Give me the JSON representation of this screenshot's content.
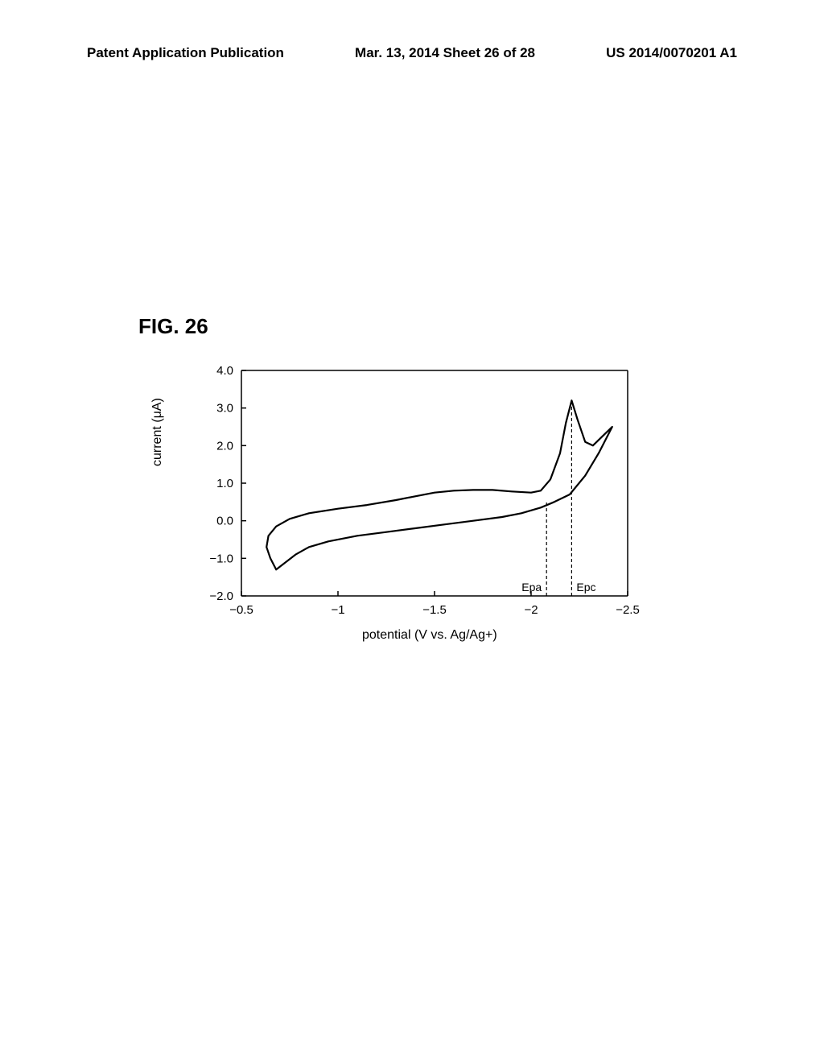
{
  "header": {
    "left": "Patent Application Publication",
    "center": "Mar. 13, 2014  Sheet 26 of 28",
    "right": "US 2014/0070201 A1"
  },
  "figure": {
    "label": "FIG. 26",
    "type": "line",
    "chart": {
      "xlabel": "potential  (V vs. Ag/Ag+)",
      "ylabel": "current  (μA)",
      "xlim": [
        -0.5,
        -2.5
      ],
      "ylim": [
        -2.0,
        4.0
      ],
      "xticks": [
        -0.5,
        -1,
        -1.5,
        -2,
        -2.5
      ],
      "xtick_labels": [
        "−0.5",
        "−1",
        "−1.5",
        "−2",
        "−2.5"
      ],
      "yticks": [
        -2.0,
        -1.0,
        0.0,
        1.0,
        2.0,
        3.0,
        4.0
      ],
      "ytick_labels": [
        "−2.0",
        "−1.0",
        "0.0",
        "1.0",
        "2.0",
        "3.0",
        "4.0"
      ],
      "background_color": "#ffffff",
      "axis_color": "#000000",
      "line_color": "#000000",
      "line_width": 2.2,
      "markers": {
        "Epa": {
          "x": -2.08,
          "label": "Epa"
        },
        "Epc": {
          "x": -2.21,
          "label": "Epc"
        }
      },
      "marker_line_style": "dashed",
      "marker_line_color": "#000000",
      "curve_points_forward": [
        [
          -0.68,
          -1.3
        ],
        [
          -0.65,
          -1.0
        ],
        [
          -0.63,
          -0.7
        ],
        [
          -0.64,
          -0.4
        ],
        [
          -0.68,
          -0.15
        ],
        [
          -0.75,
          0.05
        ],
        [
          -0.85,
          0.2
        ],
        [
          -1.0,
          0.32
        ],
        [
          -1.15,
          0.42
        ],
        [
          -1.3,
          0.55
        ],
        [
          -1.4,
          0.65
        ],
        [
          -1.5,
          0.75
        ],
        [
          -1.6,
          0.8
        ],
        [
          -1.7,
          0.82
        ],
        [
          -1.8,
          0.82
        ],
        [
          -1.9,
          0.78
        ],
        [
          -2.0,
          0.75
        ],
        [
          -2.05,
          0.8
        ],
        [
          -2.1,
          1.1
        ],
        [
          -2.15,
          1.8
        ],
        [
          -2.18,
          2.6
        ],
        [
          -2.21,
          3.2
        ],
        [
          -2.24,
          2.7
        ],
        [
          -2.28,
          2.1
        ],
        [
          -2.32,
          2.0
        ],
        [
          -2.38,
          2.3
        ],
        [
          -2.42,
          2.5
        ]
      ],
      "curve_points_return": [
        [
          -2.42,
          2.5
        ],
        [
          -2.35,
          1.8
        ],
        [
          -2.28,
          1.2
        ],
        [
          -2.2,
          0.7
        ],
        [
          -2.12,
          0.5
        ],
        [
          -2.05,
          0.35
        ],
        [
          -1.95,
          0.2
        ],
        [
          -1.85,
          0.1
        ],
        [
          -1.7,
          0.0
        ],
        [
          -1.55,
          -0.1
        ],
        [
          -1.4,
          -0.2
        ],
        [
          -1.25,
          -0.3
        ],
        [
          -1.1,
          -0.4
        ],
        [
          -0.95,
          -0.55
        ],
        [
          -0.85,
          -0.7
        ],
        [
          -0.78,
          -0.9
        ],
        [
          -0.73,
          -1.1
        ],
        [
          -0.68,
          -1.3
        ]
      ]
    }
  }
}
